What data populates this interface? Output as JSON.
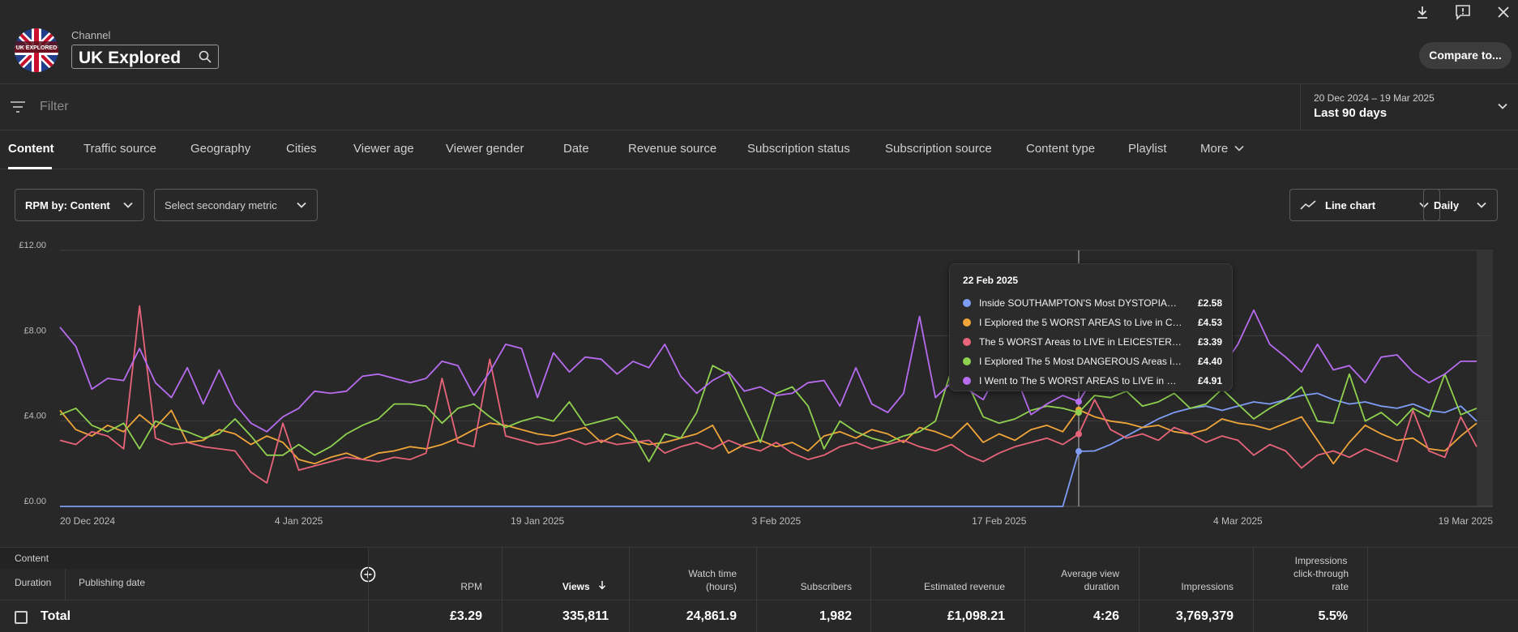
{
  "header": {
    "channel_label": "Channel",
    "channel_name": "UK Explored",
    "compare_label": "Compare to...",
    "icons": [
      "download-icon",
      "feedback-icon",
      "close-icon"
    ]
  },
  "filter": {
    "placeholder": "Filter"
  },
  "date_range": {
    "range": "20 Dec 2024 – 19 Mar 2025",
    "preset": "Last 90 days"
  },
  "tabs": [
    "Content",
    "Traffic source",
    "Geography",
    "Cities",
    "Viewer age",
    "Viewer gender",
    "Date",
    "Revenue source",
    "Subscription status",
    "Subscription source",
    "Content type",
    "Playlist",
    "More"
  ],
  "controls": {
    "primary_metric": "RPM by: Content",
    "secondary_metric": "Select secondary metric",
    "chart_type": "Line chart",
    "granularity": "Daily"
  },
  "tooltip": {
    "date": "22 Feb 2025",
    "rows": [
      {
        "name": "Inside SOUTHAMPTON'S Most DYSTOPIAN, D...",
        "value": "£2.58"
      },
      {
        "name": "I Explored the 5 WORST AREAS to Live in COV...",
        "value": "£4.53"
      },
      {
        "name": "The 5 WORST Areas to LIVE in LEICESTER (Po...",
        "value": "£3.39"
      },
      {
        "name": "I Explored The 5 Most DANGEROUS Areas in ...",
        "value": "£4.40"
      },
      {
        "name": "I Went to The 5 WORST AREAS to LIVE in CAR...",
        "value": "£4.91"
      }
    ]
  },
  "chart_data": {
    "type": "line",
    "y_ticks": [
      "£12.00",
      "£8.00",
      "£4.00",
      "£0.00"
    ],
    "x_ticks": [
      "20 Dec 2024",
      "4 Jan 2025",
      "19 Jan 2025",
      "3 Feb 2025",
      "17 Feb 2025",
      "4 Mar 2025",
      "19 Mar 2025"
    ],
    "ylim": [
      0,
      12
    ],
    "x_range": [
      "2024-12-20",
      "2025-03-19"
    ],
    "hover_date": "2025-02-22",
    "grid": true,
    "series": [
      {
        "name": "Inside SOUTHAMPTON'S Most DYSTOPIAN, D...",
        "color": "#7f9cf5",
        "start": "2024-12-20",
        "values": [
          0,
          0,
          0,
          0,
          0,
          0,
          0,
          0,
          0,
          0,
          0,
          0,
          0,
          0,
          0,
          0,
          0,
          0,
          0,
          0,
          0,
          0,
          0,
          0,
          0,
          0,
          0,
          0,
          0,
          0,
          0,
          0,
          0,
          0,
          0,
          0,
          0,
          0,
          0,
          0,
          0,
          0,
          0,
          0,
          0,
          0,
          0,
          0,
          0,
          0,
          0,
          0,
          0,
          0,
          0,
          0,
          0,
          0,
          0,
          0,
          0,
          0,
          0,
          0,
          2.58,
          2.6,
          2.9,
          3.3,
          3.7,
          4.1,
          4.4,
          4.6,
          4.7,
          4.5,
          4.7,
          4.9,
          4.8,
          5.0,
          5.2,
          5.3,
          5.0,
          4.8,
          4.9,
          4.7,
          4.6,
          4.8,
          4.5,
          4.4,
          4.7,
          4.0
        ]
      },
      {
        "name": "I Explored the 5 WORST AREAS to Live in COV...",
        "color": "#f0a53a",
        "start": "2024-12-20",
        "values": [
          4.5,
          3.6,
          3.3,
          3.8,
          3.5,
          4.3,
          3.7,
          4.5,
          3.0,
          3.1,
          3.6,
          3.4,
          2.9,
          3.3,
          3.0,
          2.2,
          2.0,
          2.3,
          2.5,
          2.2,
          2.5,
          2.6,
          2.8,
          2.7,
          2.9,
          3.2,
          3.6,
          3.9,
          3.8,
          3.6,
          3.4,
          3.3,
          3.5,
          3.7,
          3.0,
          3.4,
          3.1,
          2.9,
          3.0,
          3.2,
          3.4,
          3.8,
          2.5,
          2.9,
          3.1,
          2.8,
          3.0,
          2.6,
          3.3,
          3.5,
          3.2,
          3.6,
          3.4,
          3.0,
          3.7,
          3.5,
          3.2,
          3.9,
          3.0,
          3.4,
          3.1,
          3.6,
          3.8,
          3.5,
          4.53,
          4.2,
          4.0,
          3.9,
          3.7,
          3.8,
          3.5,
          3.4,
          3.6,
          4.1,
          3.9,
          3.8,
          3.6,
          3.9,
          4.2,
          3.1,
          2.0,
          3.0,
          3.8,
          3.4,
          3.1,
          3.2,
          2.7,
          2.6,
          3.3,
          3.9
        ]
      },
      {
        "name": "The 5 WORST Areas to LIVE in LEICESTER (Po...",
        "color": "#e8647a",
        "start": "2024-12-20",
        "values": [
          3.1,
          2.9,
          3.5,
          3.3,
          2.7,
          9.4,
          3.2,
          2.9,
          3.0,
          2.8,
          2.7,
          2.6,
          1.6,
          1.1,
          3.9,
          1.7,
          1.9,
          2.1,
          2.3,
          2.2,
          2.1,
          2.3,
          2.2,
          2.5,
          6.0,
          3.0,
          2.8,
          6.9,
          3.3,
          3.1,
          2.9,
          3.0,
          3.2,
          2.9,
          3.1,
          2.9,
          3.0,
          3.1,
          2.5,
          2.8,
          3.0,
          2.7,
          3.1,
          2.8,
          2.6,
          3.0,
          2.5,
          2.2,
          2.4,
          2.8,
          3.0,
          2.7,
          2.9,
          3.1,
          2.8,
          2.6,
          2.9,
          2.4,
          2.1,
          2.5,
          2.8,
          3.0,
          3.2,
          2.9,
          3.39,
          5.0,
          3.6,
          3.2,
          3.4,
          3.1,
          3.7,
          3.4,
          3.0,
          3.3,
          3.1,
          2.4,
          2.9,
          2.6,
          1.8,
          2.4,
          2.6,
          2.3,
          2.7,
          2.4,
          2.1,
          4.5,
          2.6,
          2.3,
          4.2,
          2.8
        ]
      },
      {
        "name": "I Explored The 5 Most DANGEROUS Areas in ...",
        "color": "#8fd14f",
        "start": "2024-12-20",
        "values": [
          4.3,
          4.6,
          3.8,
          3.5,
          3.9,
          2.7,
          4.0,
          3.7,
          3.5,
          3.2,
          3.4,
          4.1,
          3.3,
          2.4,
          2.4,
          2.9,
          2.4,
          2.8,
          3.4,
          3.8,
          4.1,
          4.8,
          4.8,
          4.7,
          3.9,
          4.6,
          4.8,
          4.2,
          3.7,
          4.0,
          4.2,
          4.0,
          4.9,
          3.8,
          4.0,
          4.2,
          3.4,
          2.1,
          3.4,
          3.2,
          4.4,
          6.6,
          6.2,
          4.6,
          3.0,
          5.3,
          5.6,
          4.7,
          2.7,
          4.0,
          3.5,
          3.2,
          3.0,
          3.3,
          3.5,
          4.0,
          6.4,
          5.8,
          4.2,
          3.9,
          4.1,
          4.5,
          4.7,
          4.6,
          4.4,
          5.2,
          5.1,
          5.4,
          4.7,
          4.9,
          5.3,
          4.6,
          4.8,
          5.5,
          4.8,
          4.1,
          4.6,
          5.0,
          5.6,
          4.0,
          3.9,
          6.2,
          4.0,
          4.4,
          3.8,
          4.6,
          4.2,
          6.2,
          4.3,
          4.6
        ]
      },
      {
        "name": "I Went to The 5 WORST AREAS to LIVE in CAR...",
        "color": "#b76cf0",
        "start": "2024-12-20",
        "values": [
          8.4,
          7.5,
          5.5,
          6.0,
          5.9,
          7.4,
          5.8,
          5.1,
          6.5,
          4.8,
          6.4,
          4.8,
          3.9,
          3.5,
          4.2,
          4.6,
          5.4,
          5.3,
          5.4,
          6.1,
          6.2,
          6.0,
          5.8,
          6.0,
          6.8,
          6.6,
          5.2,
          6.3,
          7.6,
          7.4,
          5.1,
          7.2,
          6.3,
          7.0,
          6.9,
          6.2,
          6.8,
          6.5,
          7.6,
          6.1,
          5.3,
          5.9,
          6.3,
          5.4,
          5.6,
          5.2,
          5.3,
          5.8,
          5.9,
          4.7,
          6.5,
          4.8,
          4.4,
          5.3,
          8.9,
          5.1,
          5.8,
          5.5,
          5.0,
          6.4,
          6.2,
          4.3,
          4.8,
          5.2,
          4.91,
          6.1,
          5.4,
          5.8,
          6.2,
          5.5,
          5.9,
          6.3,
          5.7,
          6.5,
          7.6,
          9.2,
          7.6,
          7.0,
          6.3,
          7.6,
          6.4,
          6.6,
          5.8,
          7.0,
          7.1,
          6.3,
          5.8,
          6.2,
          6.8,
          6.8
        ]
      }
    ]
  },
  "table": {
    "header_group": "Content",
    "sub_headers": [
      "Duration",
      "Publishing date"
    ],
    "columns": [
      {
        "label": "RPM",
        "lines": [
          "RPM"
        ]
      },
      {
        "label": "Views",
        "lines": [
          "Views"
        ]
      },
      {
        "label": "Watch time (hours)",
        "lines": [
          "Watch time",
          "(hours)"
        ]
      },
      {
        "label": "Subscribers",
        "lines": [
          "Subscribers"
        ]
      },
      {
        "label": "Estimated revenue",
        "lines": [
          "Estimated revenue"
        ]
      },
      {
        "label": "Average view duration",
        "lines": [
          "Average view",
          "duration"
        ]
      },
      {
        "label": "Impressions",
        "lines": [
          "Impressions"
        ]
      },
      {
        "label": "Impressions click-through rate",
        "lines": [
          "Impressions",
          "click-through",
          "rate"
        ]
      }
    ],
    "total": {
      "label": "Total",
      "values": [
        "£3.29",
        "335,811",
        "24,861.9",
        "1,982",
        "£1,098.21",
        "4:26",
        "3,769,379",
        "5.5%"
      ]
    }
  }
}
